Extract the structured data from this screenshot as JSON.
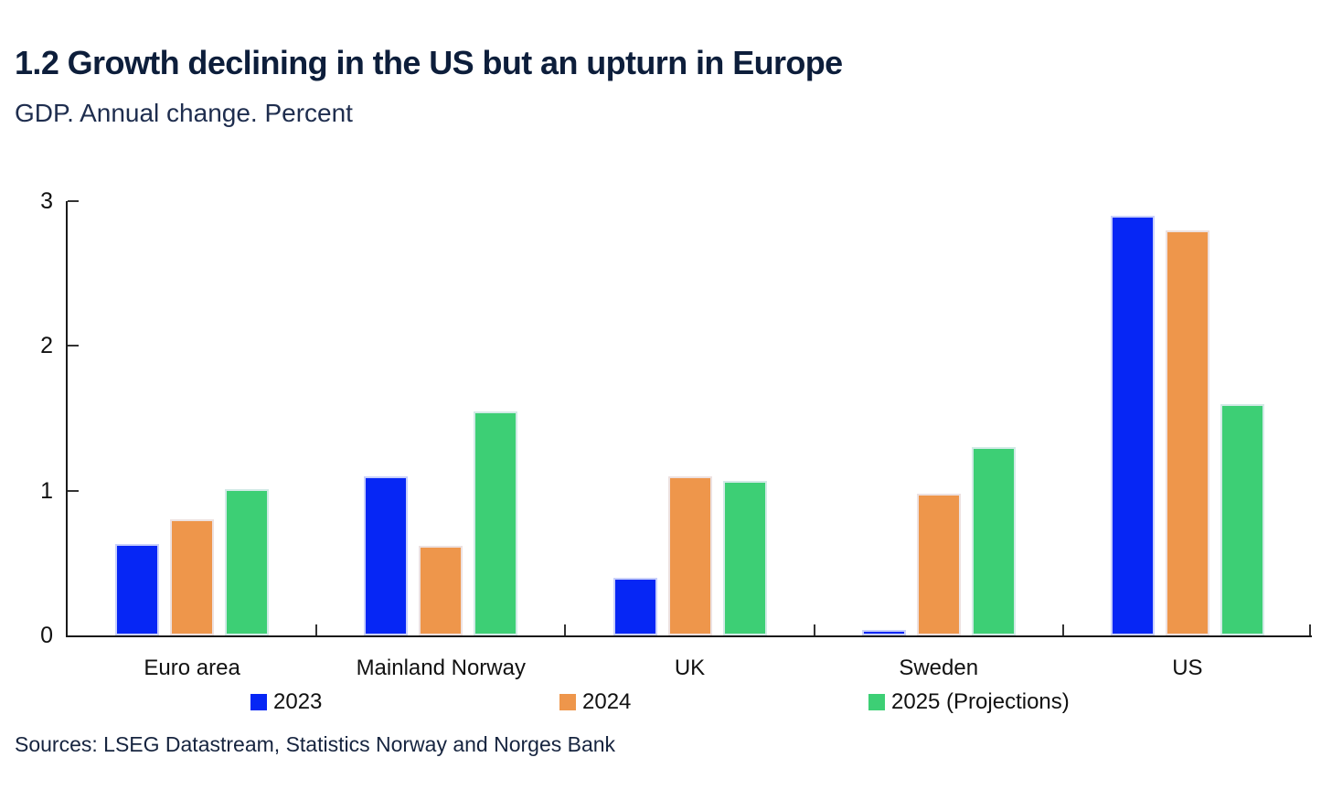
{
  "header": {
    "title": "1.2 Growth declining in the US but an upturn in Europe",
    "subtitle": "GDP. Annual change. Percent"
  },
  "chart_data": {
    "type": "bar",
    "title": "1.2 Growth declining in the US but an upturn in Europe",
    "subtitle": "GDP. Annual change. Percent",
    "categories": [
      "Euro area",
      "Mainland Norway",
      "UK",
      "Sweden",
      "US"
    ],
    "series": [
      {
        "name": "2023",
        "color": "#0626f5",
        "values": [
          0.63,
          1.1,
          0.4,
          0.04,
          2.9
        ]
      },
      {
        "name": "2024",
        "color": "#ee964b",
        "values": [
          0.8,
          0.62,
          1.1,
          0.98,
          2.8
        ]
      },
      {
        "name": "2025 (Projections)",
        "color": "#3dcf75",
        "values": [
          1.01,
          1.55,
          1.07,
          1.3,
          1.6
        ]
      }
    ],
    "xlabel": "",
    "ylabel": "",
    "ylim": [
      0,
      3
    ],
    "yticks": [
      0,
      1,
      2,
      3
    ],
    "grid": false,
    "legend_position": "bottom"
  },
  "footer": {
    "sources": "Sources: LSEG Datastream, Statistics Norway and Norges Bank"
  },
  "colors": {
    "bar_blue": "#0626f5",
    "bar_orange": "#ee964b",
    "bar_green": "#3dcf75",
    "title_navy": "#0d1e3b",
    "axis": "#1a1a1a"
  }
}
